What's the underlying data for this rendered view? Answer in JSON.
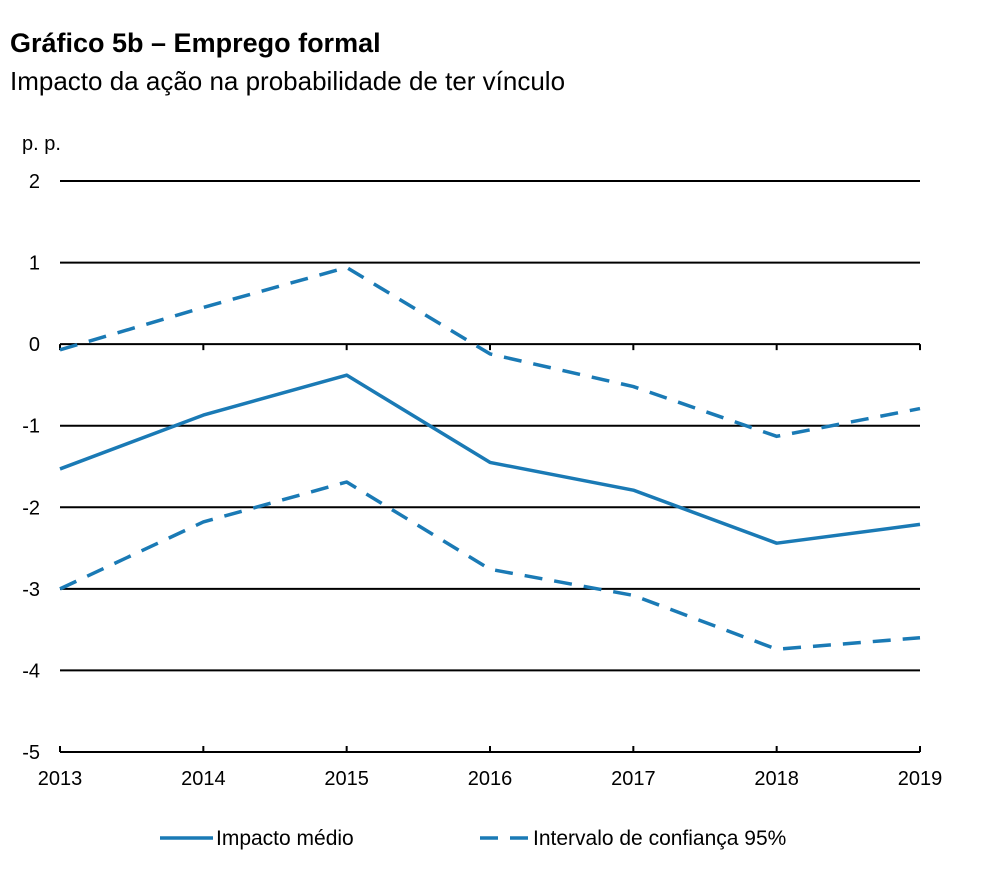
{
  "chart_data": {
    "type": "line",
    "title": "Gráfico 5b – Emprego formal",
    "subtitle": "Impacto da ação na probabilidade de ter vínculo",
    "ylabel": "p. p.",
    "xlabel": "",
    "x": [
      "2013",
      "2014",
      "2015",
      "2016",
      "2017",
      "2018",
      "2019"
    ],
    "ylim": [
      -5,
      2
    ],
    "yticks": [
      2,
      1,
      0,
      -1,
      -2,
      -3,
      -4,
      -5
    ],
    "grid": true,
    "series": [
      {
        "name": "Impacto médio",
        "style": "solid",
        "values": [
          -1.53,
          -0.87,
          -0.38,
          -1.45,
          -1.79,
          -2.44,
          -2.21
        ]
      },
      {
        "name": "Intervalo de confiança 95%",
        "style": "dashed",
        "values": [
          -0.07,
          0.45,
          0.94,
          -0.12,
          -0.52,
          -1.13,
          -0.79
        ]
      },
      {
        "name": "Intervalo de confiança 95% (inferior)",
        "style": "dashed",
        "values": [
          -3.0,
          -2.18,
          -1.69,
          -2.76,
          -3.08,
          -3.74,
          -3.6
        ]
      }
    ],
    "legend": [
      {
        "label": "Impacto médio",
        "style": "solid"
      },
      {
        "label": "Intervalo de confiança 95%",
        "style": "dashed"
      }
    ],
    "legend_position": "bottom",
    "colors": {
      "line": "#1a7ab5",
      "grid": "#000000"
    }
  }
}
